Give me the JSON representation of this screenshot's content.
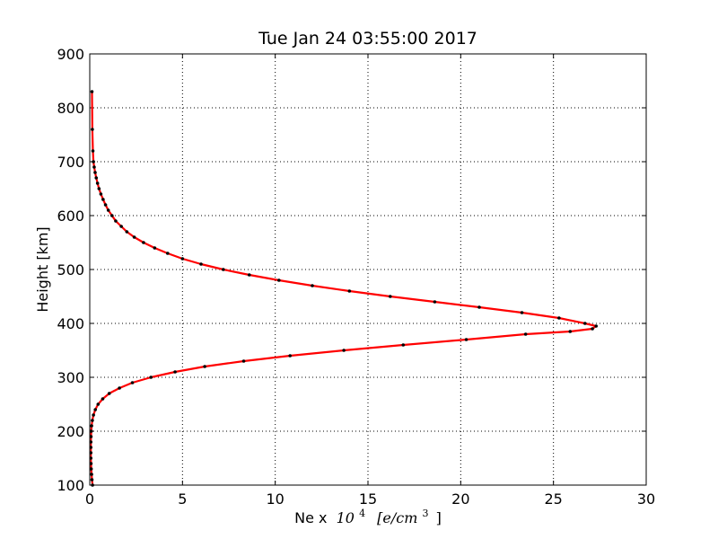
{
  "chart_data": {
    "type": "line",
    "title": "Tue Jan 24 03:55:00 2017",
    "xlabel_prefix": "Ne x",
    "xlabel_math": "10",
    "xlabel_exp": "4",
    "xlabel_unit": "[e/cm",
    "xlabel_unit_exp": "3",
    "xlabel_unit_close": "]",
    "ylabel": "Height [km]",
    "xlim": [
      0,
      30
    ],
    "ylim": [
      100,
      900
    ],
    "xticks": [
      0,
      5,
      10,
      15,
      20,
      25,
      30
    ],
    "yticks": [
      100,
      200,
      300,
      400,
      500,
      600,
      700,
      800,
      900
    ],
    "grid": true,
    "line_color": "#ff0000",
    "marker_color": "#000000",
    "series": [
      {
        "x": [
          0.15,
          0.12,
          0.1,
          0.08,
          0.07,
          0.06,
          0.06,
          0.06,
          0.06,
          0.07,
          0.08,
          0.1,
          0.14,
          0.2,
          0.3,
          0.45,
          0.7,
          1.05,
          1.6,
          2.3,
          3.3,
          4.6,
          6.2,
          8.3,
          10.8,
          13.7,
          16.9,
          20.3,
          23.5,
          25.9,
          27.1,
          27.3,
          26.7,
          25.3,
          23.3,
          21.0,
          18.6,
          16.2,
          14.0,
          12.0,
          10.2,
          8.6,
          7.2,
          6.0,
          5.0,
          4.2,
          3.5,
          2.9,
          2.4,
          2.0,
          1.7,
          1.4,
          1.2,
          1.0,
          0.85,
          0.72,
          0.6,
          0.5,
          0.42,
          0.35,
          0.29,
          0.24,
          0.2,
          0.17,
          0.14,
          0.12
        ],
        "y": [
          100,
          110,
          120,
          130,
          140,
          150,
          160,
          170,
          180,
          190,
          200,
          210,
          220,
          230,
          240,
          250,
          260,
          270,
          280,
          290,
          300,
          310,
          320,
          330,
          340,
          350,
          360,
          370,
          380,
          385,
          390,
          395,
          400,
          410,
          420,
          430,
          440,
          450,
          460,
          470,
          480,
          490,
          500,
          510,
          520,
          530,
          540,
          550,
          560,
          570,
          580,
          590,
          600,
          610,
          620,
          630,
          640,
          650,
          660,
          670,
          680,
          690,
          700,
          720,
          760,
          830
        ]
      }
    ]
  }
}
